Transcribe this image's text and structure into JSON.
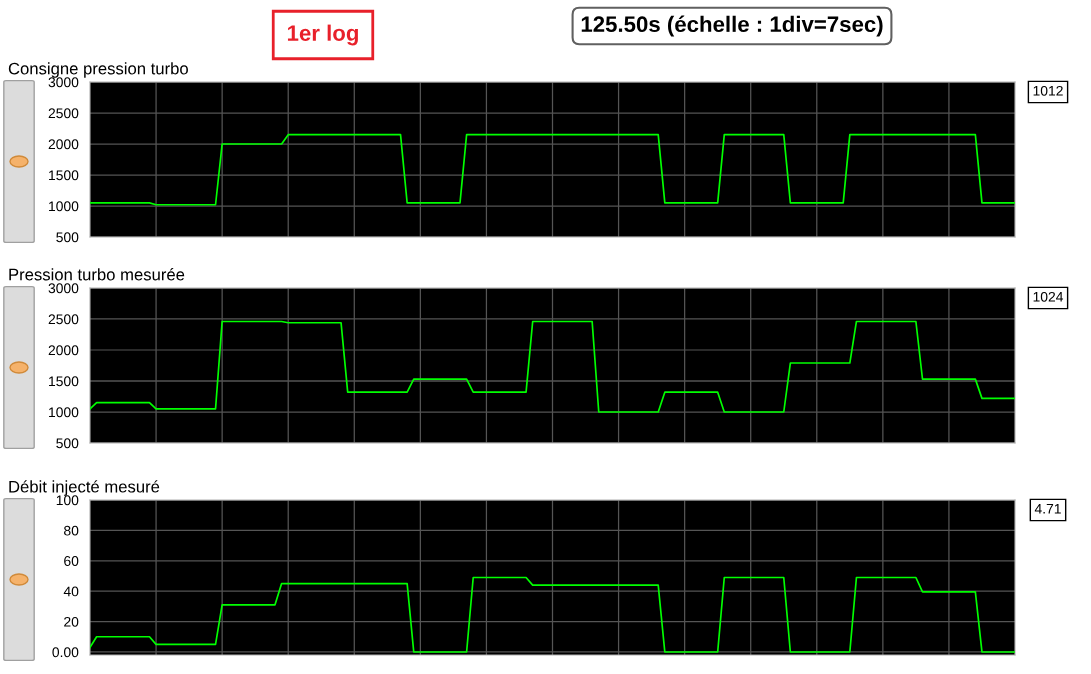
{
  "chart_data": [
    {
      "type": "line",
      "title": "Consigne pression turbo",
      "annotations": [
        "1er log",
        "125.50s (échelle : 1div=7sec)",
        "1012"
      ],
      "categories": [
        null,
        null,
        null,
        null,
        null,
        null,
        null,
        null,
        null,
        null,
        null,
        null,
        null,
        null,
        null,
        null,
        null,
        null,
        null,
        null,
        null,
        null,
        null,
        null,
        null,
        null,
        null,
        null,
        null,
        null,
        null,
        null,
        null,
        null,
        null,
        null,
        null,
        null,
        null,
        null,
        null,
        null,
        null,
        null,
        null,
        null,
        null,
        null,
        null,
        null,
        null,
        null,
        null,
        null,
        null,
        null,
        null,
        null,
        null,
        null,
        null,
        null,
        null,
        null,
        null,
        null,
        null,
        null,
        null,
        null,
        null,
        null,
        null,
        null,
        null,
        null,
        null,
        null,
        null,
        null,
        null,
        null,
        null,
        null,
        null,
        null,
        null,
        null,
        null,
        null,
        null,
        null,
        null,
        null,
        null,
        null,
        null,
        null,
        null,
        null,
        null,
        null,
        null,
        null,
        null,
        null,
        null,
        null,
        null,
        null,
        null,
        null,
        null,
        null,
        null,
        null,
        null,
        null,
        null,
        null,
        null,
        null,
        null,
        null,
        null,
        null,
        null,
        null,
        null,
        null,
        null,
        null,
        null,
        null,
        null,
        null,
        null,
        null,
        null,
        null,
        null
      ],
      "ylim": [
        500,
        3000
      ],
      "yticks": [
        500,
        1000,
        1500,
        2000,
        2500,
        3000
      ],
      "tick_labels": "y",
      "grid": true,
      "line_style": "solid",
      "series": [
        {
          "color": "#00ff00",
          "values": [
            1050,
            1050,
            1050,
            1050,
            1050,
            1050,
            1050,
            1050,
            1050,
            1050,
            1020,
            1020,
            1020,
            1020,
            1020,
            1020,
            1020,
            1020,
            1020,
            1020,
            2000,
            2000,
            2000,
            2000,
            2000,
            2000,
            2000,
            2000,
            2000,
            2000,
            2150,
            2150,
            2150,
            2150,
            2150,
            2150,
            2150,
            2150,
            2150,
            2150,
            2150,
            2150,
            2150,
            2150,
            2150,
            2150,
            2150,
            2150,
            1050,
            1050,
            1050,
            1050,
            1050,
            1050,
            1050,
            1050,
            1050,
            2150,
            2150,
            2150,
            2150,
            2150,
            2150,
            2150,
            2150,
            2150,
            2150,
            2150,
            2150,
            2150,
            2150,
            2150,
            2150,
            2150,
            2150,
            2150,
            2150,
            2150,
            2150,
            2150,
            2150,
            2150,
            2150,
            2150,
            2150,
            2150,
            2150,
            1050,
            1050,
            1050,
            1050,
            1050,
            1050,
            1050,
            1050,
            1050,
            2150,
            2150,
            2150,
            2150,
            2150,
            2150,
            2150,
            2150,
            2150,
            2150,
            1050,
            1050,
            1050,
            1050,
            1050,
            1050,
            1050,
            1050,
            1050,
            2150,
            2150,
            2150,
            2150,
            2150,
            2150,
            2150,
            2150,
            2150,
            2150,
            2150,
            2150,
            2150,
            2150,
            2150,
            2150,
            2150,
            2150,
            2150,
            2150,
            1050,
            1050,
            1050,
            1050,
            1050,
            1050
          ]
        }
      ]
    },
    {
      "type": "line",
      "title": "Pression turbo mesurée",
      "annotations": [
        "1024"
      ],
      "categories": [
        null,
        null,
        null,
        null,
        null,
        null,
        null,
        null,
        null,
        null,
        null,
        null,
        null,
        null,
        null,
        null,
        null,
        null,
        null,
        null,
        null,
        null,
        null,
        null,
        null,
        null,
        null,
        null,
        null,
        null,
        null,
        null,
        null,
        null,
        null,
        null,
        null,
        null,
        null,
        null,
        null,
        null,
        null,
        null,
        null,
        null,
        null,
        null,
        null,
        null,
        null,
        null,
        null,
        null,
        null,
        null,
        null,
        null,
        null,
        null,
        null,
        null,
        null,
        null,
        null,
        null,
        null,
        null,
        null,
        null,
        null,
        null,
        null,
        null,
        null,
        null,
        null,
        null,
        null,
        null,
        null,
        null,
        null,
        null,
        null,
        null,
        null,
        null,
        null,
        null,
        null,
        null,
        null,
        null,
        null,
        null,
        null,
        null,
        null,
        null,
        null,
        null,
        null,
        null,
        null,
        null,
        null,
        null,
        null,
        null,
        null,
        null,
        null,
        null,
        null,
        null,
        null,
        null,
        null,
        null,
        null,
        null,
        null,
        null,
        null,
        null,
        null,
        null,
        null,
        null,
        null,
        null,
        null,
        null,
        null,
        null,
        null,
        null,
        null,
        null,
        null
      ],
      "ylim": [
        500,
        3000
      ],
      "yticks": [
        500,
        1000,
        1500,
        2000,
        2500,
        3000
      ],
      "tick_labels": "y",
      "grid": true,
      "line_style": "solid",
      "series": [
        {
          "color": "#00ff00",
          "values": [
            1050,
            1150,
            1150,
            1150,
            1150,
            1150,
            1150,
            1150,
            1150,
            1150,
            1050,
            1050,
            1050,
            1050,
            1050,
            1050,
            1050,
            1050,
            1050,
            1050,
            2460,
            2460,
            2460,
            2460,
            2460,
            2460,
            2460,
            2460,
            2460,
            2460,
            2440,
            2440,
            2440,
            2440,
            2440,
            2440,
            2440,
            2440,
            2440,
            1320,
            1320,
            1320,
            1320,
            1320,
            1320,
            1320,
            1320,
            1320,
            1320,
            1530,
            1530,
            1530,
            1530,
            1530,
            1530,
            1530,
            1530,
            1530,
            1320,
            1320,
            1320,
            1320,
            1320,
            1320,
            1320,
            1320,
            1320,
            2460,
            2460,
            2460,
            2460,
            2460,
            2460,
            2460,
            2460,
            2460,
            2460,
            1000,
            1000,
            1000,
            1000,
            1000,
            1000,
            1000,
            1000,
            1000,
            1000,
            1320,
            1320,
            1320,
            1320,
            1320,
            1320,
            1320,
            1320,
            1320,
            1000,
            1000,
            1000,
            1000,
            1000,
            1000,
            1000,
            1000,
            1000,
            1000,
            1790,
            1790,
            1790,
            1790,
            1790,
            1790,
            1790,
            1790,
            1790,
            1790,
            2460,
            2460,
            2460,
            2460,
            2460,
            2460,
            2460,
            2460,
            2460,
            2460,
            1530,
            1530,
            1530,
            1530,
            1530,
            1530,
            1530,
            1530,
            1530,
            1220,
            1220,
            1220,
            1220,
            1220,
            1220
          ]
        }
      ]
    },
    {
      "type": "line",
      "title": "Débit injecté mesuré",
      "annotations": [
        "4.71"
      ],
      "categories": [
        null,
        null,
        null,
        null,
        null,
        null,
        null,
        null,
        null,
        null,
        null,
        null,
        null,
        null,
        null,
        null,
        null,
        null,
        null,
        null,
        null,
        null,
        null,
        null,
        null,
        null,
        null,
        null,
        null,
        null,
        null,
        null,
        null,
        null,
        null,
        null,
        null,
        null,
        null,
        null,
        null,
        null,
        null,
        null,
        null,
        null,
        null,
        null,
        null,
        null,
        null,
        null,
        null,
        null,
        null,
        null,
        null,
        null,
        null,
        null,
        null,
        null,
        null,
        null,
        null,
        null,
        null,
        null,
        null,
        null,
        null,
        null,
        null,
        null,
        null,
        null,
        null,
        null,
        null,
        null,
        null,
        null,
        null,
        null,
        null,
        null,
        null,
        null,
        null,
        null,
        null,
        null,
        null,
        null,
        null,
        null,
        null,
        null,
        null,
        null,
        null,
        null,
        null,
        null,
        null,
        null,
        null,
        null,
        null,
        null,
        null,
        null,
        null,
        null,
        null,
        null,
        null,
        null,
        null,
        null,
        null,
        null,
        null,
        null,
        null,
        null,
        null,
        null,
        null,
        null,
        null,
        null,
        null,
        null,
        null,
        null,
        null,
        null,
        null,
        null,
        null
      ],
      "ylim": [
        -2,
        100
      ],
      "yticks": [
        {
          "value": 0,
          "label": "0.00"
        },
        20,
        40,
        60,
        80,
        100
      ],
      "tick_labels": "y",
      "grid": true,
      "line_style": "solid",
      "series": [
        {
          "color": "#00ff00",
          "values": [
            3,
            10,
            10,
            10,
            10,
            10,
            10,
            10,
            10,
            10,
            5,
            5,
            5,
            5,
            5,
            5,
            5,
            5,
            5,
            5,
            31,
            31,
            31,
            31,
            31,
            31,
            31,
            31,
            31,
            45,
            45,
            45,
            45,
            45,
            45,
            45,
            45,
            45,
            45,
            45,
            45,
            45,
            45,
            45,
            45,
            45,
            45,
            45,
            45,
            0,
            0,
            0,
            0,
            0,
            0,
            0,
            0,
            0,
            49,
            49,
            49,
            49,
            49,
            49,
            49,
            49,
            49,
            44,
            44,
            44,
            44,
            44,
            44,
            44,
            44,
            44,
            44,
            44,
            44,
            44,
            44,
            44,
            44,
            44,
            44,
            44,
            44,
            0,
            0,
            0,
            0,
            0,
            0,
            0,
            0,
            0,
            49,
            49,
            49,
            49,
            49,
            49,
            49,
            49,
            49,
            49,
            0,
            0,
            0,
            0,
            0,
            0,
            0,
            0,
            0,
            0,
            49,
            49,
            49,
            49,
            49,
            49,
            49,
            49,
            49,
            49,
            39.5,
            39.5,
            39.5,
            39.5,
            39.5,
            39.5,
            39.5,
            39.5,
            39.5,
            0,
            0,
            0,
            0,
            0,
            0
          ]
        }
      ]
    }
  ]
}
